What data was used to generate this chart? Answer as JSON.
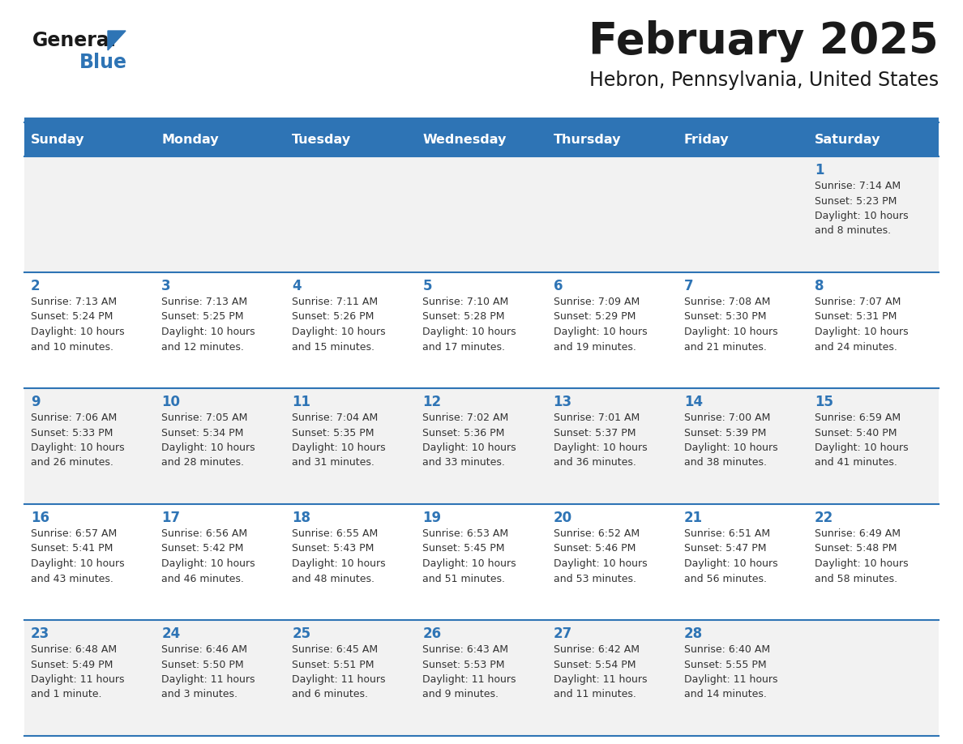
{
  "title": "February 2025",
  "subtitle": "Hebron, Pennsylvania, United States",
  "header_bg": "#2E74B5",
  "header_text_color": "#FFFFFF",
  "cell_bg_odd": "#F2F2F2",
  "cell_bg_even": "#FFFFFF",
  "border_color": "#2E74B5",
  "text_color": "#333333",
  "day_num_color": "#2E74B5",
  "day_names": [
    "Sunday",
    "Monday",
    "Tuesday",
    "Wednesday",
    "Thursday",
    "Friday",
    "Saturday"
  ],
  "title_color": "#1A1A1A",
  "subtitle_color": "#1A1A1A",
  "logo_general_color": "#1A1A1A",
  "logo_blue_color": "#2E74B5",
  "weeks": [
    [
      {
        "day": null,
        "info": null
      },
      {
        "day": null,
        "info": null
      },
      {
        "day": null,
        "info": null
      },
      {
        "day": null,
        "info": null
      },
      {
        "day": null,
        "info": null
      },
      {
        "day": null,
        "info": null
      },
      {
        "day": 1,
        "info": "Sunrise: 7:14 AM\nSunset: 5:23 PM\nDaylight: 10 hours\nand 8 minutes."
      }
    ],
    [
      {
        "day": 2,
        "info": "Sunrise: 7:13 AM\nSunset: 5:24 PM\nDaylight: 10 hours\nand 10 minutes."
      },
      {
        "day": 3,
        "info": "Sunrise: 7:13 AM\nSunset: 5:25 PM\nDaylight: 10 hours\nand 12 minutes."
      },
      {
        "day": 4,
        "info": "Sunrise: 7:11 AM\nSunset: 5:26 PM\nDaylight: 10 hours\nand 15 minutes."
      },
      {
        "day": 5,
        "info": "Sunrise: 7:10 AM\nSunset: 5:28 PM\nDaylight: 10 hours\nand 17 minutes."
      },
      {
        "day": 6,
        "info": "Sunrise: 7:09 AM\nSunset: 5:29 PM\nDaylight: 10 hours\nand 19 minutes."
      },
      {
        "day": 7,
        "info": "Sunrise: 7:08 AM\nSunset: 5:30 PM\nDaylight: 10 hours\nand 21 minutes."
      },
      {
        "day": 8,
        "info": "Sunrise: 7:07 AM\nSunset: 5:31 PM\nDaylight: 10 hours\nand 24 minutes."
      }
    ],
    [
      {
        "day": 9,
        "info": "Sunrise: 7:06 AM\nSunset: 5:33 PM\nDaylight: 10 hours\nand 26 minutes."
      },
      {
        "day": 10,
        "info": "Sunrise: 7:05 AM\nSunset: 5:34 PM\nDaylight: 10 hours\nand 28 minutes."
      },
      {
        "day": 11,
        "info": "Sunrise: 7:04 AM\nSunset: 5:35 PM\nDaylight: 10 hours\nand 31 minutes."
      },
      {
        "day": 12,
        "info": "Sunrise: 7:02 AM\nSunset: 5:36 PM\nDaylight: 10 hours\nand 33 minutes."
      },
      {
        "day": 13,
        "info": "Sunrise: 7:01 AM\nSunset: 5:37 PM\nDaylight: 10 hours\nand 36 minutes."
      },
      {
        "day": 14,
        "info": "Sunrise: 7:00 AM\nSunset: 5:39 PM\nDaylight: 10 hours\nand 38 minutes."
      },
      {
        "day": 15,
        "info": "Sunrise: 6:59 AM\nSunset: 5:40 PM\nDaylight: 10 hours\nand 41 minutes."
      }
    ],
    [
      {
        "day": 16,
        "info": "Sunrise: 6:57 AM\nSunset: 5:41 PM\nDaylight: 10 hours\nand 43 minutes."
      },
      {
        "day": 17,
        "info": "Sunrise: 6:56 AM\nSunset: 5:42 PM\nDaylight: 10 hours\nand 46 minutes."
      },
      {
        "day": 18,
        "info": "Sunrise: 6:55 AM\nSunset: 5:43 PM\nDaylight: 10 hours\nand 48 minutes."
      },
      {
        "day": 19,
        "info": "Sunrise: 6:53 AM\nSunset: 5:45 PM\nDaylight: 10 hours\nand 51 minutes."
      },
      {
        "day": 20,
        "info": "Sunrise: 6:52 AM\nSunset: 5:46 PM\nDaylight: 10 hours\nand 53 minutes."
      },
      {
        "day": 21,
        "info": "Sunrise: 6:51 AM\nSunset: 5:47 PM\nDaylight: 10 hours\nand 56 minutes."
      },
      {
        "day": 22,
        "info": "Sunrise: 6:49 AM\nSunset: 5:48 PM\nDaylight: 10 hours\nand 58 minutes."
      }
    ],
    [
      {
        "day": 23,
        "info": "Sunrise: 6:48 AM\nSunset: 5:49 PM\nDaylight: 11 hours\nand 1 minute."
      },
      {
        "day": 24,
        "info": "Sunrise: 6:46 AM\nSunset: 5:50 PM\nDaylight: 11 hours\nand 3 minutes."
      },
      {
        "day": 25,
        "info": "Sunrise: 6:45 AM\nSunset: 5:51 PM\nDaylight: 11 hours\nand 6 minutes."
      },
      {
        "day": 26,
        "info": "Sunrise: 6:43 AM\nSunset: 5:53 PM\nDaylight: 11 hours\nand 9 minutes."
      },
      {
        "day": 27,
        "info": "Sunrise: 6:42 AM\nSunset: 5:54 PM\nDaylight: 11 hours\nand 11 minutes."
      },
      {
        "day": 28,
        "info": "Sunrise: 6:40 AM\nSunset: 5:55 PM\nDaylight: 11 hours\nand 14 minutes."
      },
      {
        "day": null,
        "info": null
      }
    ]
  ]
}
